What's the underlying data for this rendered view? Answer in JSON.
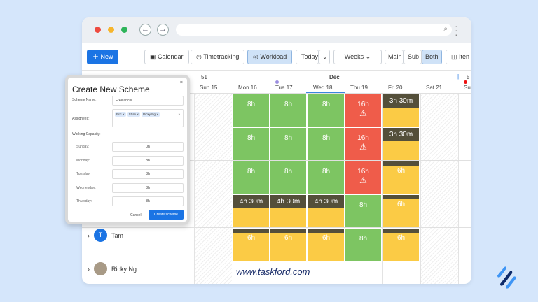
{
  "toolbar": {
    "new": "New",
    "calendar": "Calendar",
    "timetracking": "Timetracking",
    "workload": "Workload",
    "today": "Today",
    "weeks": "Weeks",
    "main": "Main",
    "sub": "Sub",
    "both": "Both",
    "items": "Iten"
  },
  "calendar": {
    "week": "51",
    "month": "Dec",
    "next_week": "5",
    "days": [
      "Sun 15",
      "Mon 16",
      "Tue 17",
      "Wed 18",
      "Thu 19",
      "Fri 20",
      "Sat 21",
      "Su"
    ]
  },
  "rows": [
    [
      {
        "t": "8h",
        "c": "g"
      },
      {
        "t": "8h",
        "c": "g"
      },
      {
        "t": "8h",
        "c": "g"
      },
      {
        "t": "16h",
        "c": "r",
        "warn": true
      },
      {
        "t": "3h 30m",
        "c": "y",
        "dark": "big"
      }
    ],
    [
      {
        "t": "8h",
        "c": "g"
      },
      {
        "t": "8h",
        "c": "g"
      },
      {
        "t": "8h",
        "c": "g"
      },
      {
        "t": "16h",
        "c": "r",
        "warn": true
      },
      {
        "t": "3h 30m",
        "c": "y",
        "dark": "big"
      }
    ],
    [
      {
        "t": "8h",
        "c": "g"
      },
      {
        "t": "8h",
        "c": "g"
      },
      {
        "t": "8h",
        "c": "g"
      },
      {
        "t": "16h",
        "c": "r",
        "warn": true
      },
      {
        "t": "6h",
        "c": "y",
        "dark": "strip"
      }
    ],
    [
      {
        "t": "4h 30m",
        "c": "y",
        "dark": "big"
      },
      {
        "t": "4h 30m",
        "c": "y",
        "dark": "big"
      },
      {
        "t": "4h 30m",
        "c": "y",
        "dark": "big"
      },
      {
        "t": "8h",
        "c": "g"
      },
      {
        "t": "6h",
        "c": "y",
        "dark": "strip"
      }
    ],
    [
      {
        "t": "6h",
        "c": "y",
        "dark": "strip"
      },
      {
        "t": "6h",
        "c": "y",
        "dark": "strip"
      },
      {
        "t": "6h",
        "c": "y",
        "dark": "strip"
      },
      {
        "t": "8h",
        "c": "g"
      },
      {
        "t": "6h",
        "c": "y",
        "dark": "strip"
      }
    ]
  ],
  "people": {
    "tam": "Tam",
    "tam_initial": "T",
    "ricky": "Ricky Ng"
  },
  "watermark": "www.taskford.com",
  "modal": {
    "title": "Create New Scheme",
    "close": "×",
    "name_label": "Scheme Name:",
    "name_value": "Freelancer",
    "assignees_label": "Assignees:",
    "assignees": [
      "Eric",
      "Shan",
      "Ricky Ng"
    ],
    "capacity_label": "Working Capacity:",
    "days": [
      {
        "d": "Sunday:",
        "v": "0h"
      },
      {
        "d": "Monday:",
        "v": "8h"
      },
      {
        "d": "Tuesday:",
        "v": "8h"
      },
      {
        "d": "Wednesday:",
        "v": "8h"
      },
      {
        "d": "Thursday:",
        "v": "8h"
      }
    ],
    "cancel": "Cancel",
    "create": "Create scheme"
  }
}
